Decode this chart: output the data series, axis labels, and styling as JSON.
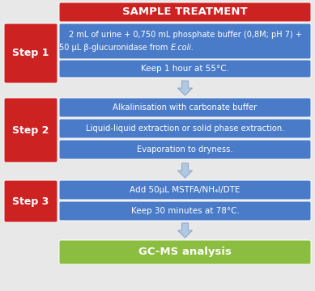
{
  "title": "SAMPLE TREATMENT",
  "title_bg": "#CC2222",
  "title_fg": "#FFFFFF",
  "step_bg": "#CC2222",
  "step_fg": "#FFFFFF",
  "box_bg": "#4A7BC8",
  "box_fg": "#FFFFFF",
  "gcms_bg": "#8BBD40",
  "gcms_fg": "#FFFFFF",
  "arrow_bg": "#B0C8E0",
  "arrow_edge": "#90AACC",
  "fig_bg": "#E8E8E8",
  "step1_box1": "2 mL of urine + 0,750 mL phosphate buffer (0,8M; pH 7) +",
  "step1_box1b": "50 μL β-glucuronidase from ",
  "step1_box1c": "E.coli.",
  "step1_box2": "Keep 1 hour at 55°C.",
  "step2_box1": "Alkalinisation with carbonate buffer",
  "step2_box2": "Liquid-liquid extraction or solid phase extraction.",
  "step2_box3": "Evaporation to dryness.",
  "step3_box1": "Add 50μL MSTFA/NH₄I/DTE",
  "step3_box2": "Keep 30 minutes at 78°C.",
  "gcms_label": "GC-MS analysis",
  "step1_label": "Step 1",
  "step2_label": "Step 2",
  "step3_label": "Step 3"
}
